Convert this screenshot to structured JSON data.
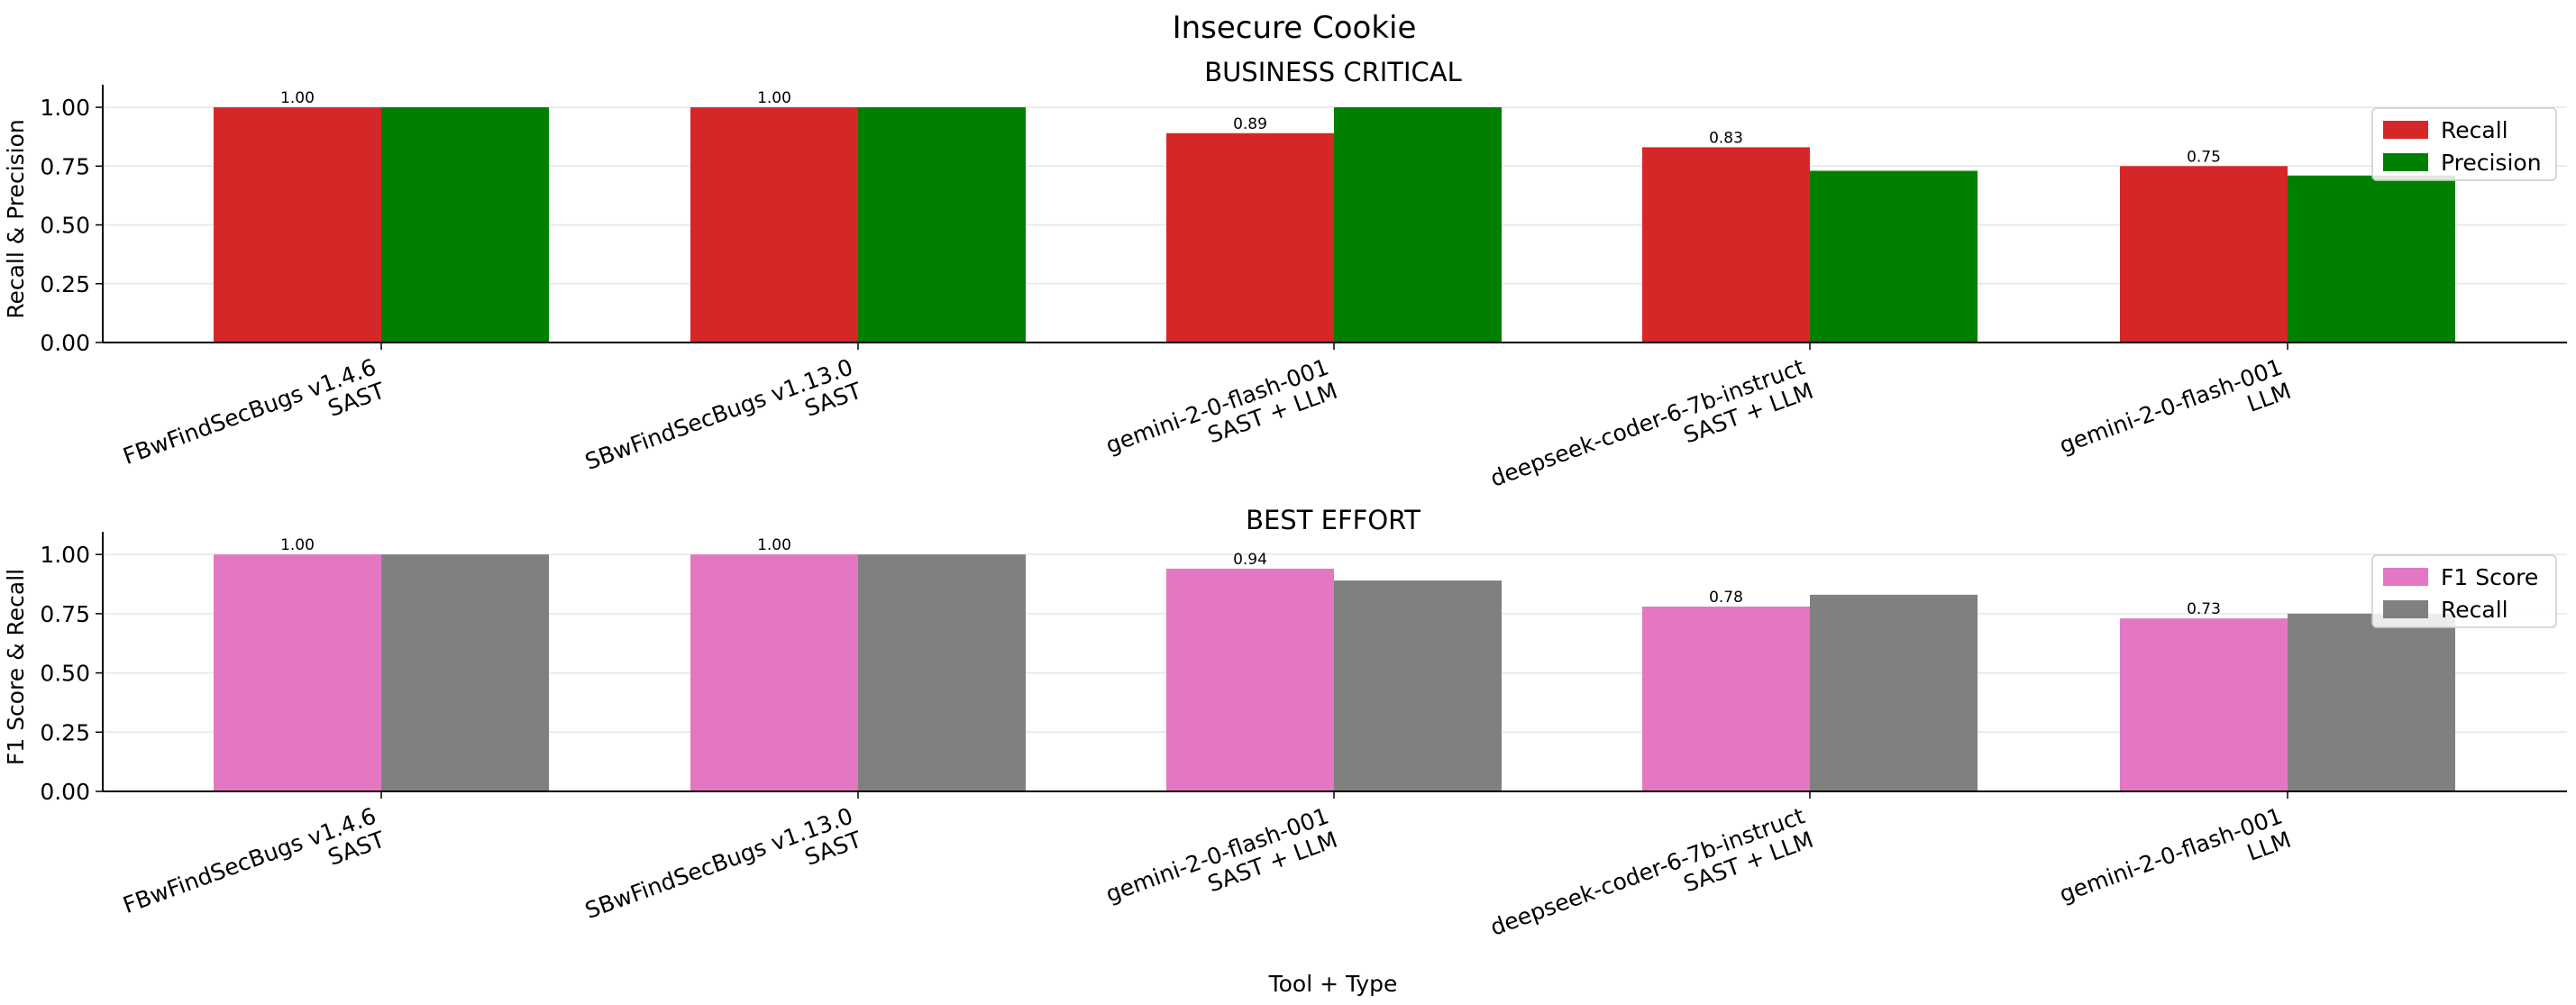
{
  "figure_title": "Insecure Cookie",
  "shared_xlabel": "Tool + Type",
  "chart_data": [
    {
      "type": "bar",
      "title": "BUSINESS CRITICAL",
      "xlabel": "",
      "ylabel": "Recall & Precision",
      "ylim": [
        0,
        1.05
      ],
      "yticks": [
        "0.00",
        "0.25",
        "0.50",
        "0.75",
        "1.00"
      ],
      "grid": "horizontal",
      "legend_position": "top-right",
      "categories": [
        [
          "FBwFindSecBugs v1.4.6",
          "SAST"
        ],
        [
          "SBwFindSecBugs v1.13.0",
          "SAST"
        ],
        [
          "gemini-2-0-flash-001",
          "SAST + LLM"
        ],
        [
          "deepseek-coder-6-7b-instruct",
          "SAST + LLM"
        ],
        [
          "gemini-2-0-flash-001",
          "LLM"
        ]
      ],
      "series": [
        {
          "name": "Recall",
          "color": "#d62728",
          "values": [
            1.0,
            1.0,
            0.89,
            0.83,
            0.75
          ],
          "labels": [
            "1.00",
            "1.00",
            "0.89",
            "0.83",
            "0.75"
          ]
        },
        {
          "name": "Precision",
          "color": "#008000",
          "values": [
            1.0,
            1.0,
            1.0,
            0.73,
            0.71
          ]
        }
      ]
    },
    {
      "type": "bar",
      "title": "BEST EFFORT",
      "xlabel": "",
      "ylabel": "F1 Score & Recall",
      "ylim": [
        0,
        1.05
      ],
      "yticks": [
        "0.00",
        "0.25",
        "0.50",
        "0.75",
        "1.00"
      ],
      "grid": "horizontal",
      "legend_position": "top-right",
      "categories": [
        [
          "FBwFindSecBugs v1.4.6",
          "SAST"
        ],
        [
          "SBwFindSecBugs v1.13.0",
          "SAST"
        ],
        [
          "gemini-2-0-flash-001",
          "SAST + LLM"
        ],
        [
          "deepseek-coder-6-7b-instruct",
          "SAST + LLM"
        ],
        [
          "gemini-2-0-flash-001",
          "LLM"
        ]
      ],
      "series": [
        {
          "name": "F1 Score",
          "color": "#e377c2",
          "values": [
            1.0,
            1.0,
            0.94,
            0.78,
            0.73
          ],
          "labels": [
            "1.00",
            "1.00",
            "0.94",
            "0.78",
            "0.73"
          ]
        },
        {
          "name": "Recall",
          "color": "#808080",
          "values": [
            1.0,
            1.0,
            0.89,
            0.83,
            0.75
          ]
        }
      ]
    }
  ]
}
